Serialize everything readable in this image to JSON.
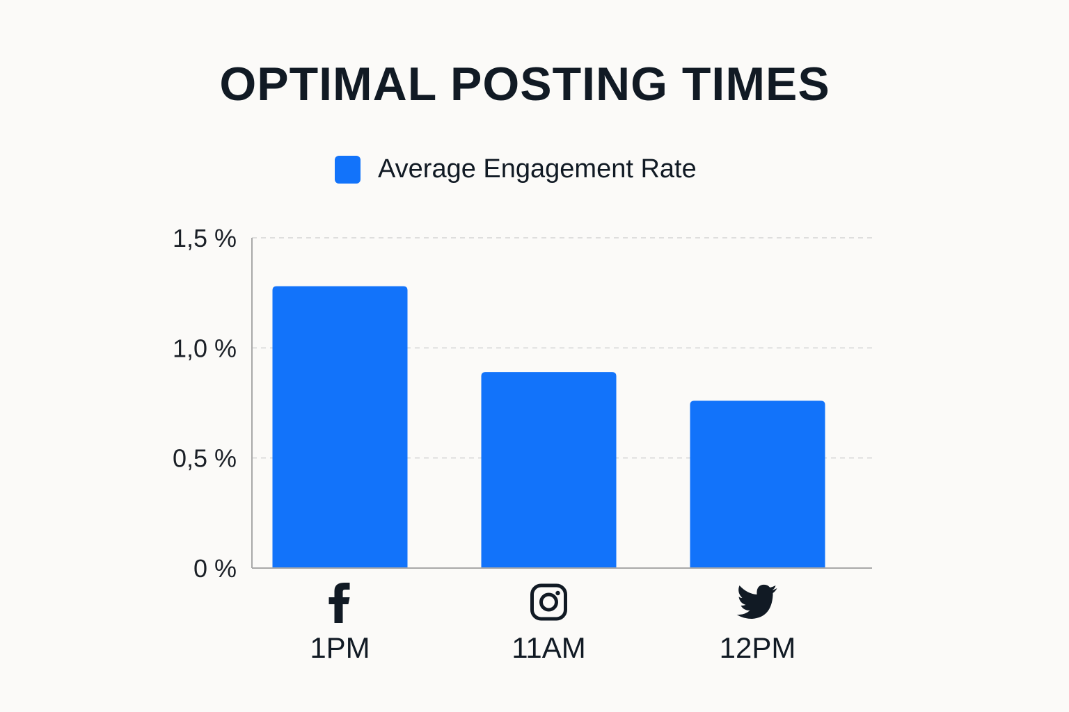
{
  "chart_data": {
    "type": "bar",
    "title": "OPTIMAL POSTING TIMES",
    "legend": [
      "Average Engagement Rate"
    ],
    "legend_position": "top-center",
    "categories": [
      "1PM",
      "11AM",
      "12PM"
    ],
    "category_icons": [
      "facebook-icon",
      "instagram-icon",
      "twitter-icon"
    ],
    "series": [
      {
        "name": "Average Engagement Rate",
        "values": [
          1.28,
          0.89,
          0.76
        ],
        "color": "#1273fa"
      }
    ],
    "xlabel": "",
    "ylabel": "",
    "ylim": [
      0,
      1.5
    ],
    "yticks": [
      0,
      0.5,
      1.0,
      1.5
    ],
    "ytick_labels": [
      "0 %",
      "0,5 %",
      "1,0 %",
      "1,5 %"
    ],
    "grid": true
  }
}
